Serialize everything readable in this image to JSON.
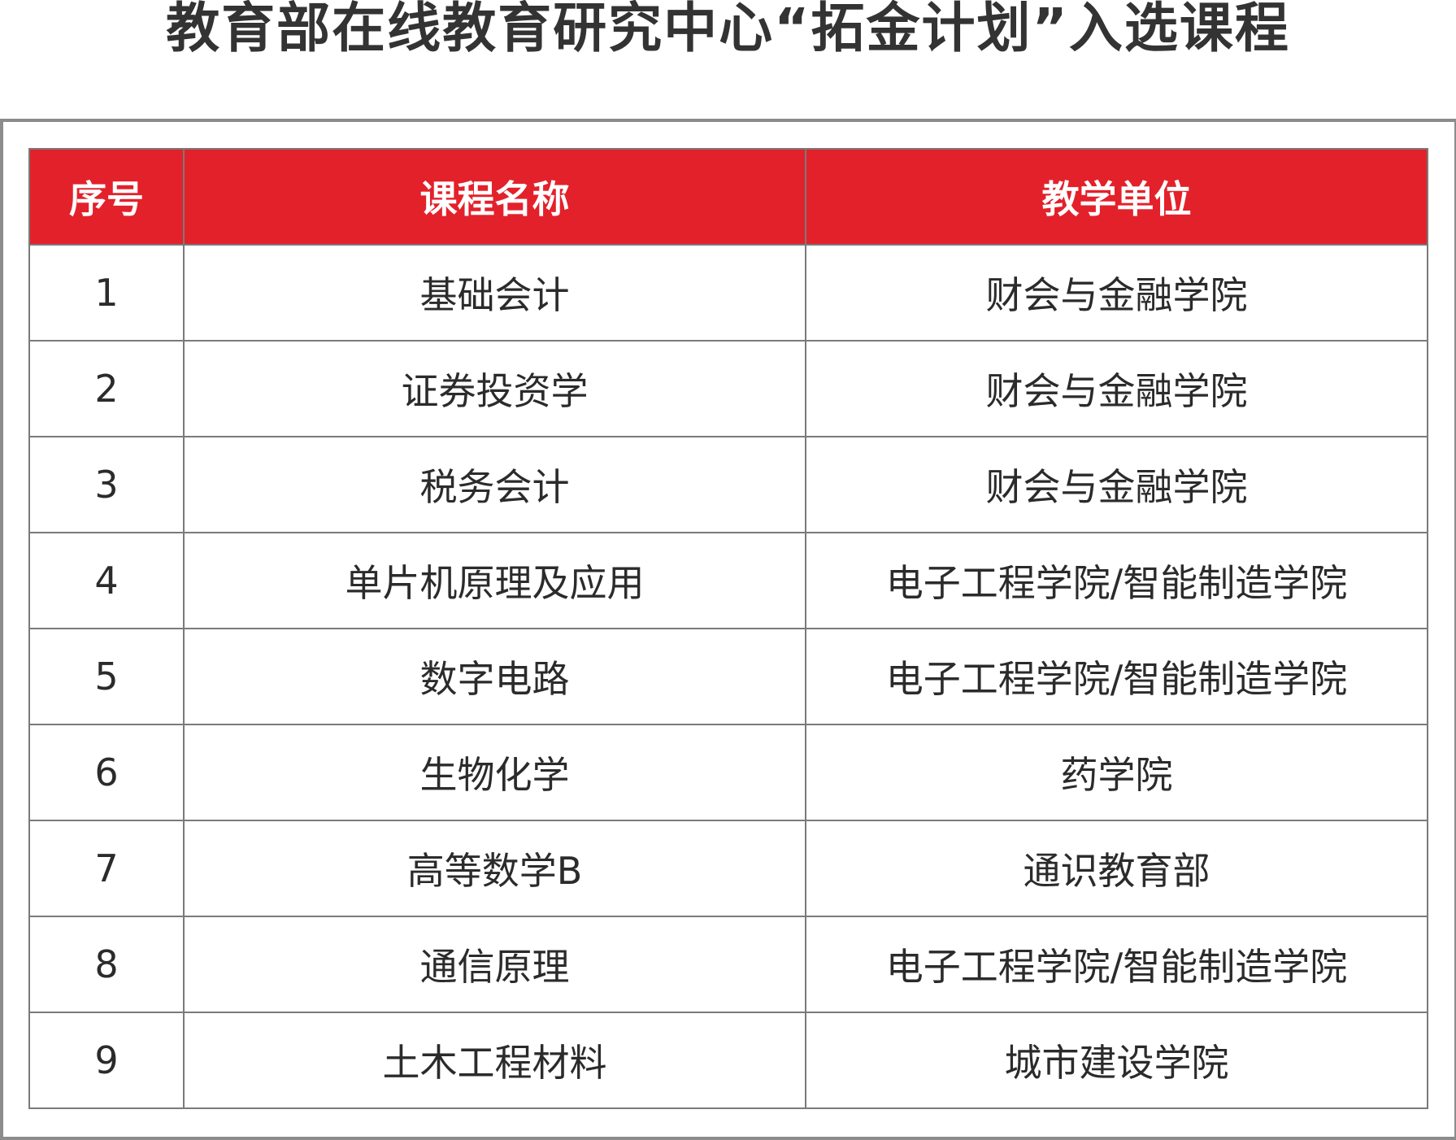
{
  "title": "教育部在线教育研究中心“拓金计划”入选课程",
  "header_color": "#e3212b",
  "columns": [
    "序号",
    "课程名称",
    "教学单位"
  ],
  "rows": [
    [
      "1",
      "基础会计",
      "财会与金融学院"
    ],
    [
      "2",
      "证券投资学",
      "财会与金融学院"
    ],
    [
      "3",
      "税务会计",
      "财会与金融学院"
    ],
    [
      "4",
      "单片机原理及应用",
      "电子工程学院/智能制造学院"
    ],
    [
      "5",
      "数字电路",
      "电子工程学院/智能制造学院"
    ],
    [
      "6",
      "生物化学",
      "药学院"
    ],
    [
      "7",
      "高等数学B",
      "通识教育部"
    ],
    [
      "8",
      "通信原理",
      "电子工程学院/智能制造学院"
    ],
    [
      "9",
      "土木工程材料",
      "城市建设学院"
    ]
  ]
}
